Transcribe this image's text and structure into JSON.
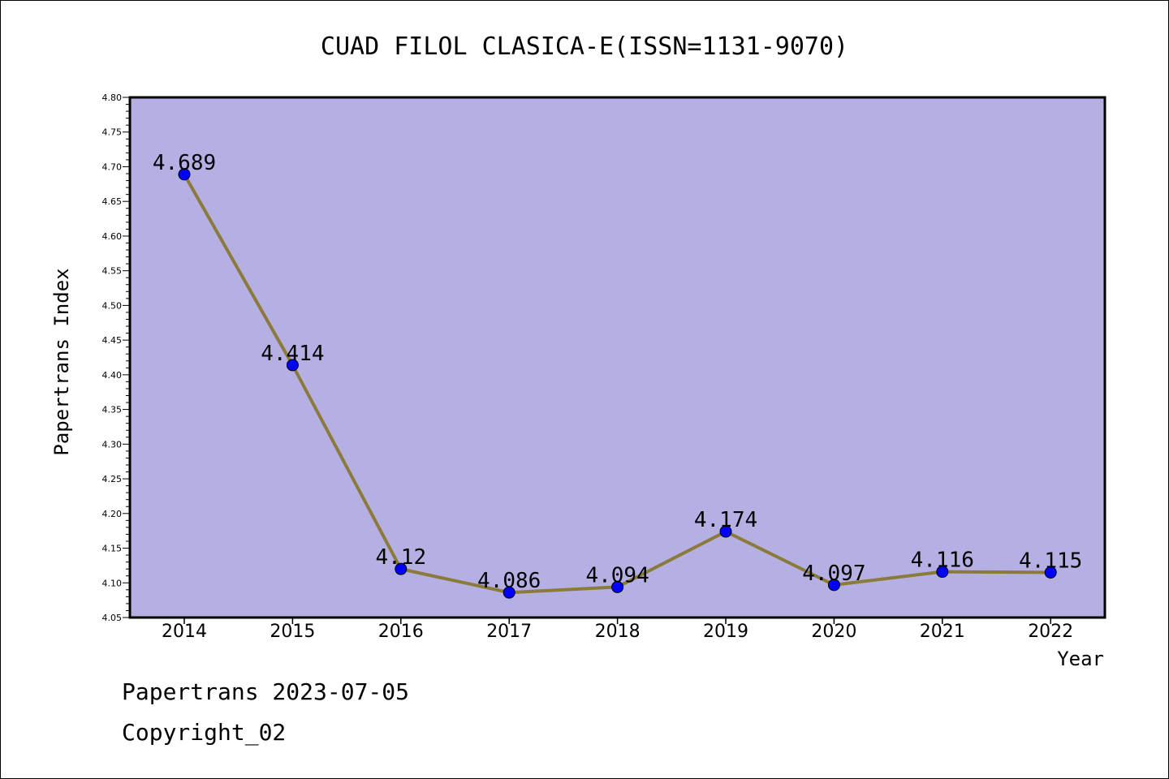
{
  "chart_data": {
    "type": "line",
    "title": "CUAD FILOL CLASICA-E(ISSN=1131-9070)",
    "xlabel": "Year",
    "ylabel": "Papertrans Index",
    "categories": [
      "2014",
      "2015",
      "2016",
      "2017",
      "2018",
      "2019",
      "2020",
      "2021",
      "2022"
    ],
    "values": [
      4.689,
      4.414,
      4.12,
      4.086,
      4.094,
      4.174,
      4.097,
      4.116,
      4.115
    ],
    "data_labels": [
      "4.689",
      "4.414",
      "4.12",
      "4.086",
      "4.094",
      "4.174",
      "4.097",
      "4.116",
      "4.115"
    ],
    "ylim": [
      4.05,
      4.8
    ],
    "yticks": [
      "4.05",
      "4.10",
      "4.15",
      "4.20",
      "4.25",
      "4.30",
      "4.35",
      "4.40",
      "4.45",
      "4.50",
      "4.55",
      "4.60",
      "4.65",
      "4.70",
      "4.75",
      "4.80"
    ],
    "grid": false,
    "legend": "none",
    "colors": {
      "plot_background": "#b5b0e3",
      "line": "#8b7a3a",
      "marker": "#0000ff"
    }
  },
  "footer": {
    "date_line": "Papertrans 2023-07-05",
    "copyright": "Copyright_02"
  }
}
